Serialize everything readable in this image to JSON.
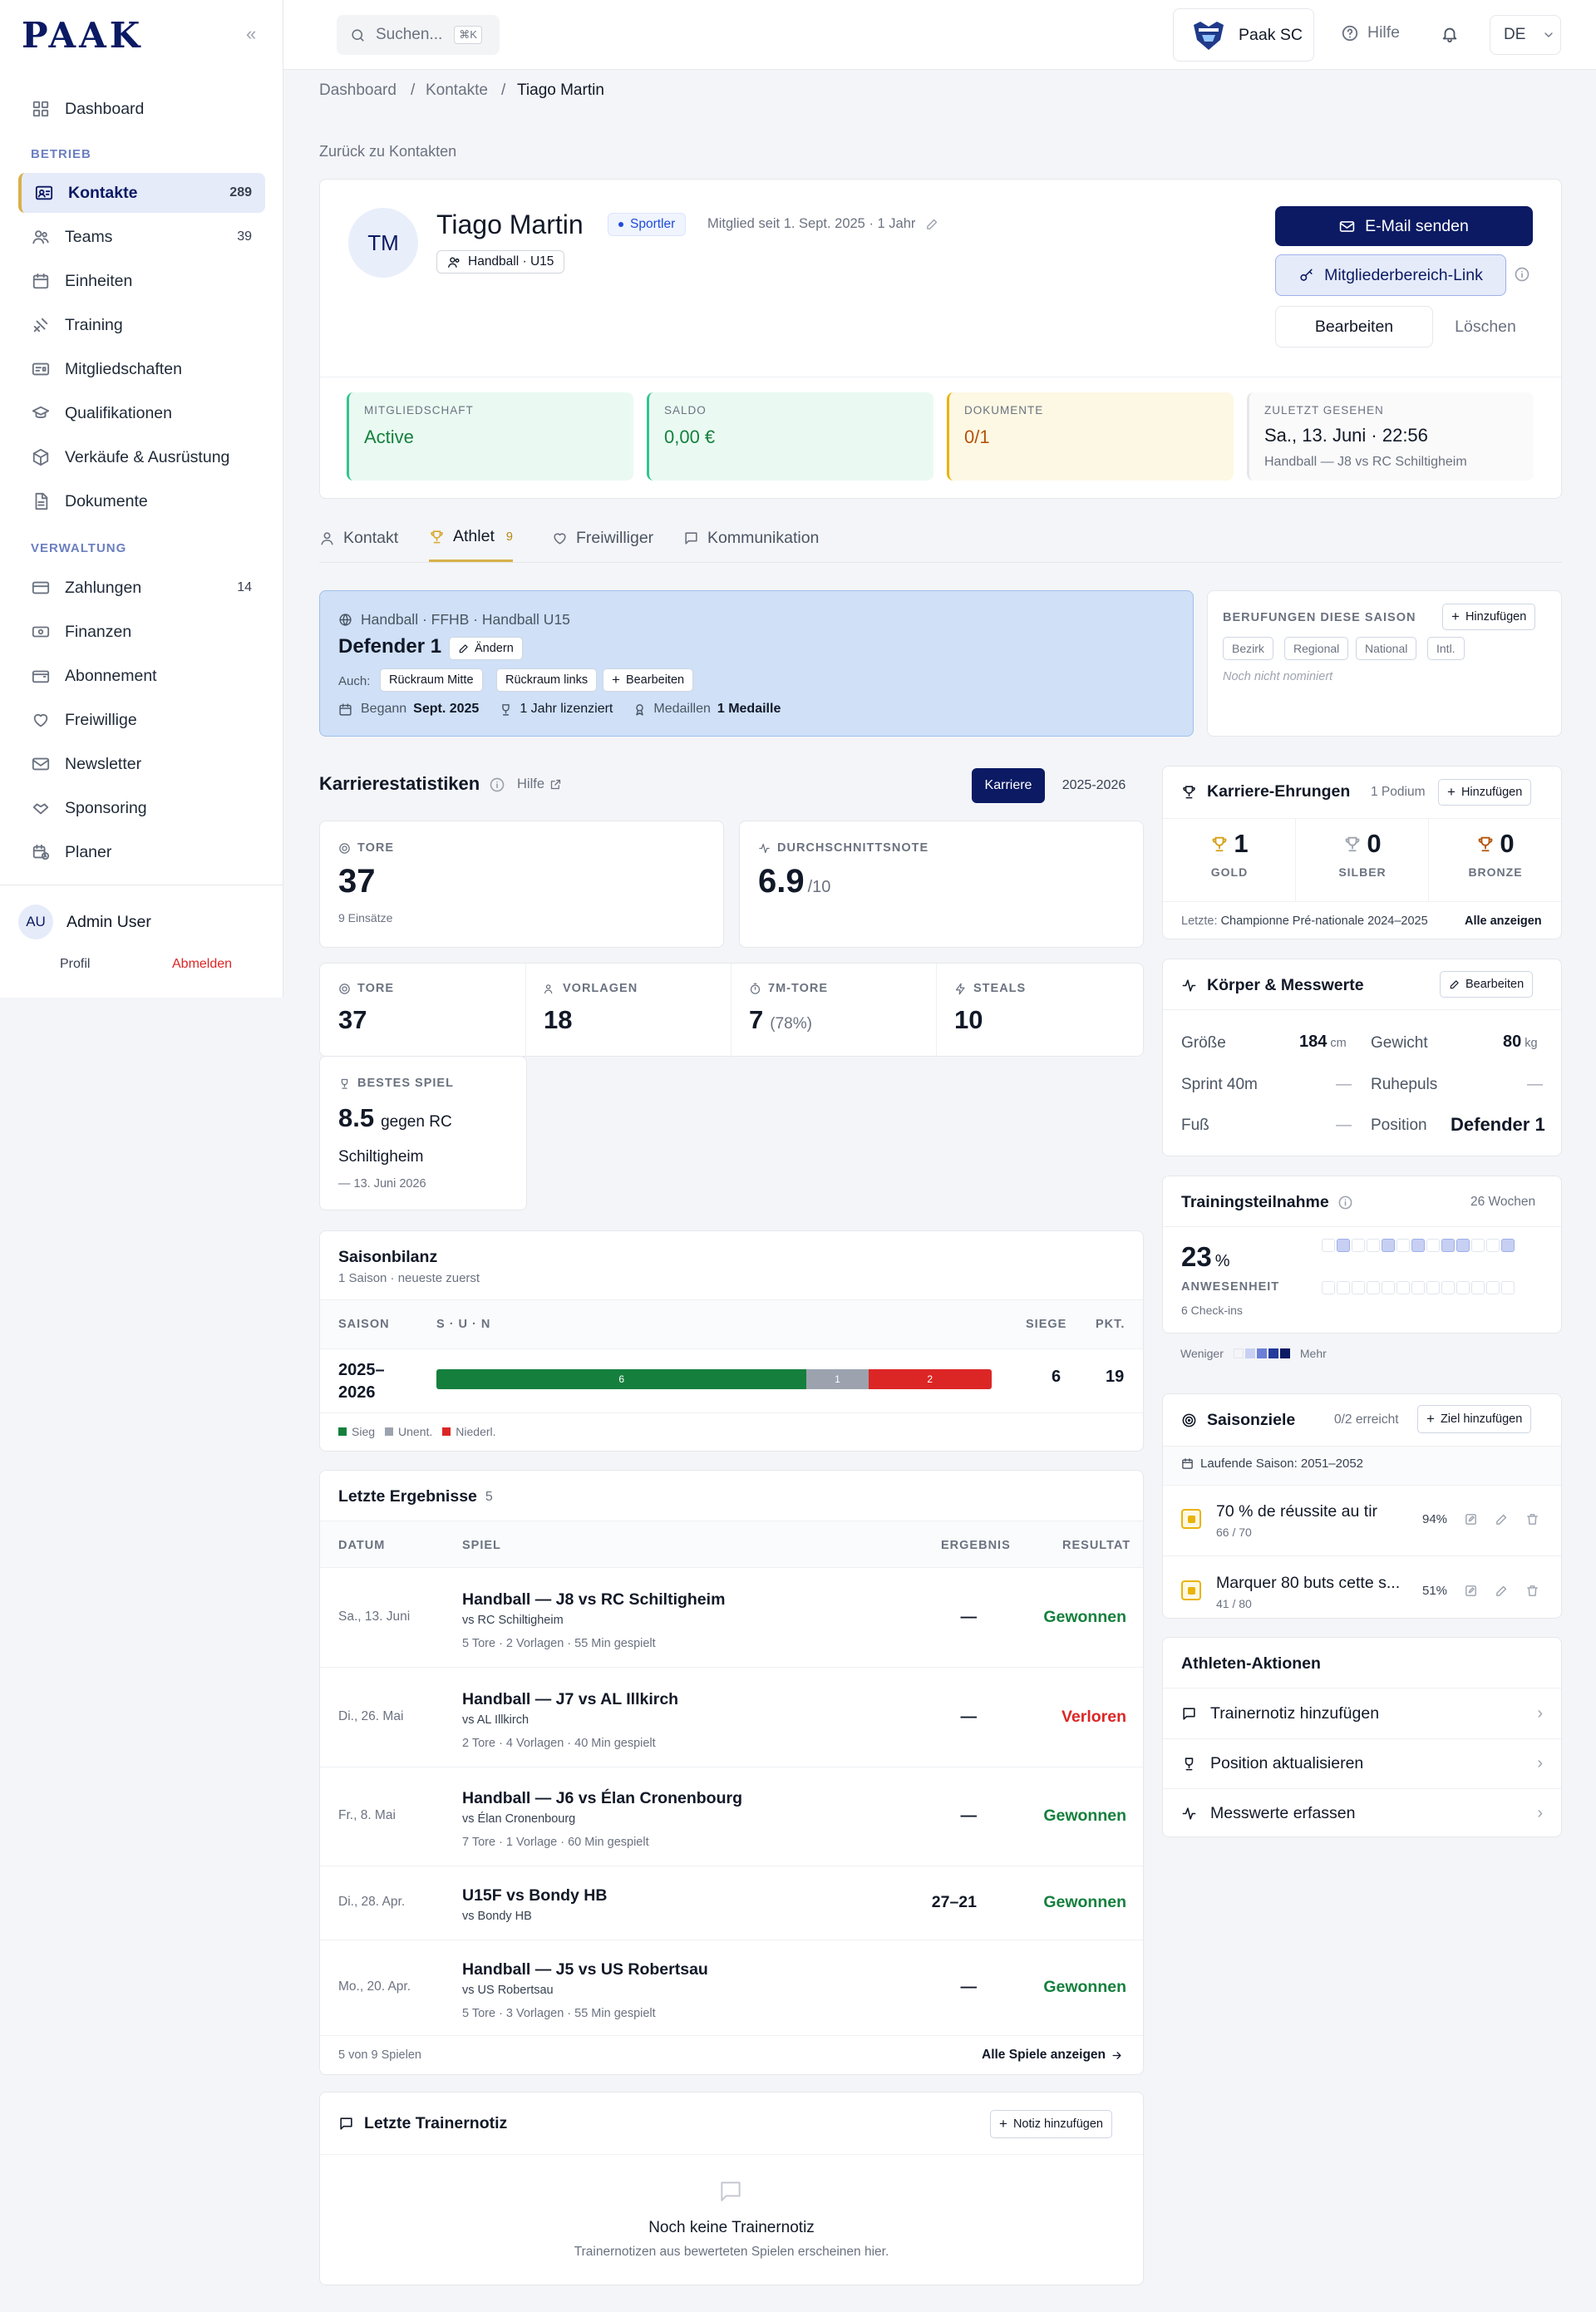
{
  "sidebar": {
    "logo": "PAAK",
    "collapse": "«",
    "dashboard": "Dashboard",
    "section_betrieb": "BETRIEB",
    "section_verwaltung": "VERWALTUNG",
    "items": [
      {
        "label": "Kontakte",
        "count": "289"
      },
      {
        "label": "Teams",
        "count": "39"
      },
      {
        "label": "Einheiten"
      },
      {
        "label": "Training"
      },
      {
        "label": "Mitgliedschaften"
      },
      {
        "label": "Qualifikationen"
      },
      {
        "label": "Verkäufe & Ausrüstung"
      },
      {
        "label": "Dokumente"
      }
    ],
    "admin_items": [
      {
        "label": "Zahlungen",
        "count": "14"
      },
      {
        "label": "Finanzen"
      },
      {
        "label": "Abonnement"
      },
      {
        "label": "Freiwillige"
      },
      {
        "label": "Newsletter"
      },
      {
        "label": "Sponsoring"
      },
      {
        "label": "Planer"
      }
    ],
    "user": {
      "initials": "AU",
      "name": "Admin User",
      "profile": "Profil",
      "logout": "Abmelden"
    }
  },
  "topbar": {
    "search_placeholder": "Suchen...",
    "shortcut": "⌘K",
    "club": "Paak SC",
    "help": "Hilfe",
    "lang": "DE"
  },
  "breadcrumb": [
    "Dashboard",
    "Kontakte",
    "Tiago Martin"
  ],
  "back_link": "Zurück zu Kontakten",
  "profile": {
    "initials": "TM",
    "name": "Tiago Martin",
    "role_badge": "Sportler",
    "member_since": "Mitglied seit 1. Sept. 2025 · 1 Jahr",
    "team_chip": "Handball · U15",
    "actions": {
      "email": "E-Mail senden",
      "member_link": "Mitgliederbereich-Link",
      "edit": "Bearbeiten",
      "delete": "Löschen"
    },
    "kpis": [
      {
        "label": "MITGLIEDSCHAFT",
        "value": "Active"
      },
      {
        "label": "SALDO",
        "value": "0,00 €"
      },
      {
        "label": "DOKUMENTE",
        "value": "0/1"
      },
      {
        "label": "ZULETZT GESEHEN",
        "value": "Sa., 13. Juni · 22:56",
        "sub": "Handball — J8 vs RC Schiltigheim"
      }
    ]
  },
  "tabs": [
    {
      "label": "Kontakt"
    },
    {
      "label": "Athlet",
      "count": "9"
    },
    {
      "label": "Freiwilliger"
    },
    {
      "label": "Kommunikation"
    }
  ],
  "position": {
    "context": "Handball · FFHB · Handball U15",
    "title": "Defender 1",
    "change": "Ändern",
    "also_label": "Auch:",
    "also": [
      "Rückraum Mitte",
      "Rückraum links"
    ],
    "edit": "Bearbeiten",
    "began_label": "Begann",
    "began": "Sept. 2025",
    "licensed": "1 Jahr lizenziert",
    "medals_label": "Medaillen",
    "medals": "1 Medaille"
  },
  "nominations": {
    "title": "BERUFUNGEN DIESE SAISON",
    "add": "Hinzufügen",
    "levels": [
      "Bezirk",
      "Regional",
      "National",
      "Intl."
    ],
    "empty": "Noch nicht nominiert"
  },
  "career": {
    "title": "Karrierestatistiken",
    "help": "Hilfe",
    "toggle": [
      "Karriere",
      "2025-2026"
    ],
    "goals_label": "TORE",
    "goals": "37",
    "goals_sub": "9 Einsätze",
    "avg_label": "DURCHSCHNITTSNOTE",
    "avg": "6.9",
    "avg_suffix": "/10",
    "stats": [
      {
        "label": "TORE",
        "value": "37"
      },
      {
        "label": "VORLAGEN",
        "value": "18"
      },
      {
        "label": "7M-TORE",
        "value": "7",
        "extra": "(78%)"
      },
      {
        "label": "STEALS",
        "value": "10"
      }
    ],
    "best_label": "BESTES SPIEL",
    "best_value": "8.5",
    "best_vs_1": "gegen RC",
    "best_vs_2": "Schiltigheim",
    "best_date": "— 13. Juni 2026"
  },
  "season": {
    "title": "Saisonbilanz",
    "sub": "1 Saison · neueste zuerst",
    "cols": [
      "SAISON",
      "S · U · N",
      "SIEGE",
      "PKT."
    ],
    "row": {
      "season_1": "2025–",
      "season_2": "2026",
      "w": 6,
      "d": 1,
      "l": 2,
      "wins": "6",
      "pts": "19"
    },
    "legend": [
      "Sieg",
      "Unent.",
      "Niederl."
    ]
  },
  "results": {
    "title": "Letzte Ergebnisse",
    "count": "5",
    "cols": [
      "DATUM",
      "SPIEL",
      "ERGEBNIS",
      "RESULTAT"
    ],
    "rows": [
      {
        "date": "Sa., 13. Juni",
        "game": "Handball — J8 vs RC Schiltigheim",
        "vs": "vs RC Schiltigheim",
        "meta": "5 Tore · 2 Vorlagen · 55 Min gespielt",
        "score": "—",
        "result": "Gewonnen"
      },
      {
        "date": "Di., 26. Mai",
        "game": "Handball — J7 vs AL Illkirch",
        "vs": "vs AL Illkirch",
        "meta": "2 Tore · 4 Vorlagen · 40 Min gespielt",
        "score": "—",
        "result": "Verloren"
      },
      {
        "date": "Fr., 8. Mai",
        "game": "Handball — J6 vs Élan Cronenbourg",
        "vs": "vs Élan Cronenbourg",
        "meta": "7 Tore · 1 Vorlage · 60 Min gespielt",
        "score": "—",
        "result": "Gewonnen"
      },
      {
        "date": "Di., 28. Apr.",
        "game": "U15F vs Bondy HB",
        "vs": "vs Bondy HB",
        "meta": "",
        "score": "27–21",
        "result": "Gewonnen"
      },
      {
        "date": "Mo., 20. Apr.",
        "game": "Handball — J5 vs US Robertsau",
        "vs": "vs US Robertsau",
        "meta": "5 Tore · 3 Vorlagen · 55 Min gespielt",
        "score": "—",
        "result": "Gewonnen"
      }
    ],
    "footer_left": "5 von 9 Spielen",
    "footer_right": "Alle Spiele anzeigen"
  },
  "coach_note": {
    "title": "Letzte Trainernotiz",
    "add": "Notiz hinzufügen",
    "empty_title": "Noch keine Trainernotiz",
    "empty_sub": "Trainernotizen aus bewerteten Spielen erscheinen hier."
  },
  "honors": {
    "title": "Karriere-Ehrungen",
    "podium": "1 Podium",
    "add": "Hinzufügen",
    "medals": [
      {
        "value": "1",
        "label": "GOLD",
        "color": "#d4a017"
      },
      {
        "value": "0",
        "label": "SILBER",
        "color": "#9ca3af"
      },
      {
        "value": "0",
        "label": "BRONZE",
        "color": "#b45309"
      }
    ],
    "last_label": "Letzte:",
    "last": "Championne Pré-nationale 2024–2025",
    "show_all": "Alle anzeigen"
  },
  "body": {
    "title": "Körper & Messwerte",
    "edit": "Bearbeiten",
    "height_label": "Größe",
    "height": "184",
    "height_unit": "cm",
    "weight_label": "Gewicht",
    "weight": "80",
    "weight_unit": "kg",
    "sprint_label": "Sprint 40m",
    "sprint": "—",
    "pulse_label": "Ruhepuls",
    "pulse": "—",
    "foot_label": "Fuß",
    "foot": "—",
    "position_label": "Position",
    "position": "Defender 1"
  },
  "attendance": {
    "title": "Trainingsteilnahme",
    "weeks": "26 Wochen",
    "percent": "23",
    "percent_sign": "%",
    "label": "ANWESENHEIT",
    "checkins": "6 Check-ins",
    "less": "Weniger",
    "more": "Mehr",
    "levels_row1": [
      0,
      1,
      0,
      0,
      1,
      0,
      1,
      0,
      1,
      1,
      0,
      0,
      1
    ],
    "levels_row2": [
      0,
      0,
      0,
      0,
      0,
      0,
      0,
      0,
      0,
      0,
      0,
      0,
      0
    ]
  },
  "goals": {
    "title": "Saisonziele",
    "reached": "0/2 erreicht",
    "add": "Ziel hinzufügen",
    "season": "Laufende Saison: 2051–2052",
    "items": [
      {
        "title": "70 % de réussite au tir",
        "progress": "66 / 70",
        "percent": "94%"
      },
      {
        "title": "Marquer 80 buts cette s...",
        "progress": "41 / 80",
        "percent": "51%"
      }
    ]
  },
  "actions": {
    "title": "Athleten-Aktionen",
    "items": [
      "Trainernotiz hinzufügen",
      "Position aktualisieren",
      "Messwerte erfassen"
    ]
  },
  "colors": {
    "primary": "#0b1a63",
    "accent": "#d8b14a",
    "win": "#15803d",
    "draw": "#9ca3af",
    "loss": "#dc2626"
  }
}
